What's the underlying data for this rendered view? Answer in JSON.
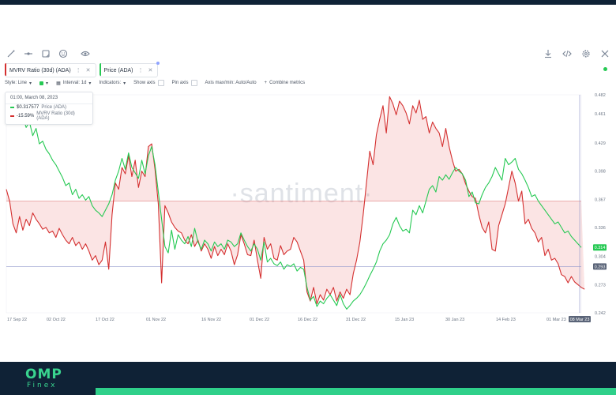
{
  "toolbar": {
    "left_icons": [
      "pencil-icon",
      "line-tool-icon",
      "note-icon",
      "emoji-icon",
      "eye-icon"
    ],
    "right_icons": [
      "download-icon",
      "embed-code-icon",
      "gear-icon",
      "close-icon"
    ]
  },
  "metric_tabs": [
    {
      "label": "MVRV Ratio (30d) (ADA)",
      "color": "#d42f2f"
    },
    {
      "label": "Price (ADA)",
      "color": "#26c953"
    }
  ],
  "settings": {
    "style": "Style: Line",
    "interval": "Interval: 1d",
    "indicators": "Indicators:",
    "show_axis": "Show axis",
    "pin_axis": "Pin axis",
    "axis_maxmin": "Axis max/min: Auto/Auto",
    "combine": "Combine metrics"
  },
  "tooltip": {
    "date": "01:00, March 08, 2023",
    "price_value": "$0.317577",
    "price_label": "Price (ADA)",
    "mvrv_value": "-15.59%",
    "mvrv_label": "MVRV Ratio (30d) (ADA)"
  },
  "watermark": "·santiment·",
  "footer": {
    "brand_top": "OMP",
    "brand_bottom": "Finex"
  },
  "chart_data": {
    "type": "line",
    "x_ticks": [
      "17 Sep 22",
      "02 Oct 22",
      "17 Oct 22",
      "01 Nov 22",
      "16 Nov 22",
      "01 Dec 22",
      "16 Dec 22",
      "31 Dec 22",
      "15 Jan 23",
      "30 Jan 23",
      "14 Feb 23",
      "01 Mar 23",
      "08 Mar 23"
    ],
    "y_ticks": [
      "0.482",
      "0.461",
      "0.429",
      "0.398",
      "0.367",
      "0.336",
      "0.304",
      "0.273",
      "0.242"
    ],
    "y_range": [
      0.242,
      0.482
    ],
    "price_last_badge": "0.314",
    "mvrv_zero_badge": "0.293",
    "series": [
      {
        "name": "Price (ADA)",
        "color": "#26c953",
        "values": [
          0.465,
          0.455,
          0.461,
          0.456,
          0.45,
          0.458,
          0.446,
          0.452,
          0.437,
          0.445,
          0.428,
          0.431,
          0.422,
          0.417,
          0.41,
          0.405,
          0.398,
          0.391,
          0.382,
          0.385,
          0.372,
          0.378,
          0.368,
          0.372,
          0.366,
          0.37,
          0.36,
          0.355,
          0.352,
          0.348,
          0.355,
          0.362,
          0.372,
          0.388,
          0.398,
          0.412,
          0.4,
          0.418,
          0.402,
          0.396,
          0.39,
          0.41,
          0.395,
          0.415,
          0.425,
          0.405,
          0.375,
          0.345,
          0.315,
          0.308,
          0.333,
          0.312,
          0.328,
          0.322,
          0.318,
          0.326,
          0.315,
          0.335,
          0.32,
          0.312,
          0.322,
          0.318,
          0.31,
          0.32,
          0.315,
          0.318,
          0.312,
          0.322,
          0.32,
          0.315,
          0.318,
          0.33,
          0.322,
          0.315,
          0.31,
          0.318,
          0.312,
          0.3,
          0.32,
          0.298,
          0.302,
          0.296,
          0.294,
          0.298,
          0.29,
          0.295,
          0.293,
          0.296,
          0.288,
          0.292,
          0.29,
          0.27,
          0.256,
          0.26,
          0.249,
          0.255,
          0.252,
          0.258,
          0.262,
          0.256,
          0.25,
          0.262,
          0.252,
          0.246,
          0.25,
          0.255,
          0.258,
          0.262,
          0.268,
          0.275,
          0.283,
          0.29,
          0.298,
          0.31,
          0.318,
          0.322,
          0.328,
          0.34,
          0.347,
          0.338,
          0.332,
          0.334,
          0.33,
          0.355,
          0.35,
          0.36,
          0.352,
          0.365,
          0.378,
          0.382,
          0.375,
          0.392,
          0.388,
          0.394,
          0.389,
          0.396,
          0.402,
          0.398,
          0.395,
          0.388,
          0.37,
          0.375,
          0.363,
          0.362,
          0.372,
          0.38,
          0.385,
          0.392,
          0.402,
          0.395,
          0.388,
          0.412,
          0.405,
          0.408,
          0.412,
          0.4,
          0.395,
          0.388,
          0.38,
          0.37,
          0.372,
          0.365,
          0.36,
          0.355,
          0.35,
          0.345,
          0.34,
          0.342,
          0.336,
          0.33,
          0.332,
          0.326,
          0.322,
          0.318,
          0.314
        ]
      },
      {
        "name": "MVRV Ratio (30d) (ADA)",
        "color": "#d42f2f",
        "values": [
          0.378,
          0.365,
          0.34,
          0.33,
          0.348,
          0.333,
          0.345,
          0.338,
          0.352,
          0.345,
          0.34,
          0.334,
          0.336,
          0.33,
          0.332,
          0.325,
          0.335,
          0.328,
          0.322,
          0.318,
          0.325,
          0.316,
          0.32,
          0.312,
          0.318,
          0.31,
          0.3,
          0.305,
          0.295,
          0.3,
          0.32,
          0.29,
          0.35,
          0.385,
          0.378,
          0.402,
          0.395,
          0.415,
          0.392,
          0.41,
          0.38,
          0.398,
          0.392,
          0.425,
          0.428,
          0.4,
          0.362,
          0.275,
          0.36,
          0.352,
          0.342,
          0.336,
          0.332,
          0.33,
          0.322,
          0.318,
          0.328,
          0.315,
          0.322,
          0.31,
          0.318,
          0.312,
          0.302,
          0.315,
          0.305,
          0.312,
          0.306,
          0.318,
          0.31,
          0.295,
          0.306,
          0.328,
          0.318,
          0.306,
          0.305,
          0.322,
          0.3,
          0.28,
          0.325,
          0.312,
          0.318,
          0.302,
          0.3,
          0.316,
          0.306,
          0.31,
          0.312,
          0.325,
          0.32,
          0.31,
          0.3,
          0.265,
          0.255,
          0.27,
          0.252,
          0.262,
          0.256,
          0.268,
          0.262,
          0.27,
          0.255,
          0.265,
          0.258,
          0.268,
          0.262,
          0.285,
          0.3,
          0.32,
          0.35,
          0.385,
          0.42,
          0.405,
          0.438,
          0.455,
          0.47,
          0.44,
          0.48,
          0.472,
          0.46,
          0.475,
          0.47,
          0.462,
          0.45,
          0.47,
          0.462,
          0.476,
          0.455,
          0.458,
          0.44,
          0.452,
          0.445,
          0.44,
          0.425,
          0.445,
          0.425,
          0.41,
          0.398,
          0.4,
          0.395,
          0.384,
          0.376,
          0.37,
          0.368,
          0.35,
          0.336,
          0.33,
          0.342,
          0.312,
          0.31,
          0.338,
          0.35,
          0.362,
          0.38,
          0.398,
          0.385,
          0.365,
          0.376,
          0.34,
          0.345,
          0.335,
          0.33,
          0.32,
          0.325,
          0.305,
          0.312,
          0.3,
          0.302,
          0.296,
          0.284,
          0.282,
          0.275,
          0.282,
          0.276,
          0.273,
          0.27,
          0.268
        ]
      }
    ],
    "mvrv_baseline": 0.365,
    "grid": true
  }
}
